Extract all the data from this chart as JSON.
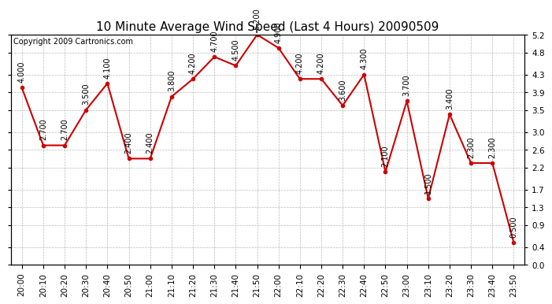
{
  "title": "10 Minute Average Wind Speed (Last 4 Hours) 20090509",
  "copyright": "Copyright 2009 Cartronics.com",
  "x_labels": [
    "20:00",
    "20:10",
    "20:20",
    "20:30",
    "20:40",
    "20:50",
    "21:00",
    "21:10",
    "21:20",
    "21:30",
    "21:40",
    "21:50",
    "22:00",
    "22:10",
    "22:20",
    "22:30",
    "22:40",
    "22:50",
    "23:00",
    "23:10",
    "23:20",
    "23:30",
    "23:40",
    "23:50"
  ],
  "y_values": [
    4.0,
    2.7,
    2.7,
    3.5,
    4.1,
    2.4,
    2.4,
    3.8,
    4.2,
    4.7,
    4.5,
    5.2,
    4.9,
    4.2,
    4.2,
    3.6,
    4.3,
    2.1,
    3.7,
    1.5,
    3.4,
    2.3,
    2.3,
    0.5
  ],
  "value_labels": [
    "4.000",
    "2.700",
    "2.700",
    "3.500",
    "4.100",
    "2.400",
    "2.400",
    "3.800",
    "4.200",
    "4.700",
    "4.500",
    "5.200",
    "4.900",
    "4.200",
    "4.200",
    "3.600",
    "4.300",
    "2.100",
    "3.700",
    "1.500",
    "3.400",
    "2.300",
    "2.300",
    "0.500"
  ],
  "line_color": "#cc0000",
  "marker_color": "#cc0000",
  "background_color": "#ffffff",
  "grid_color": "#aaaaaa",
  "ylim": [
    0.0,
    5.2
  ],
  "yticks": [
    0.0,
    0.4,
    0.9,
    1.3,
    1.7,
    2.2,
    2.6,
    3.0,
    3.5,
    3.9,
    4.3,
    4.8,
    5.2
  ],
  "title_fontsize": 11,
  "label_fontsize": 7,
  "tick_fontsize": 7.5,
  "copyright_fontsize": 7
}
